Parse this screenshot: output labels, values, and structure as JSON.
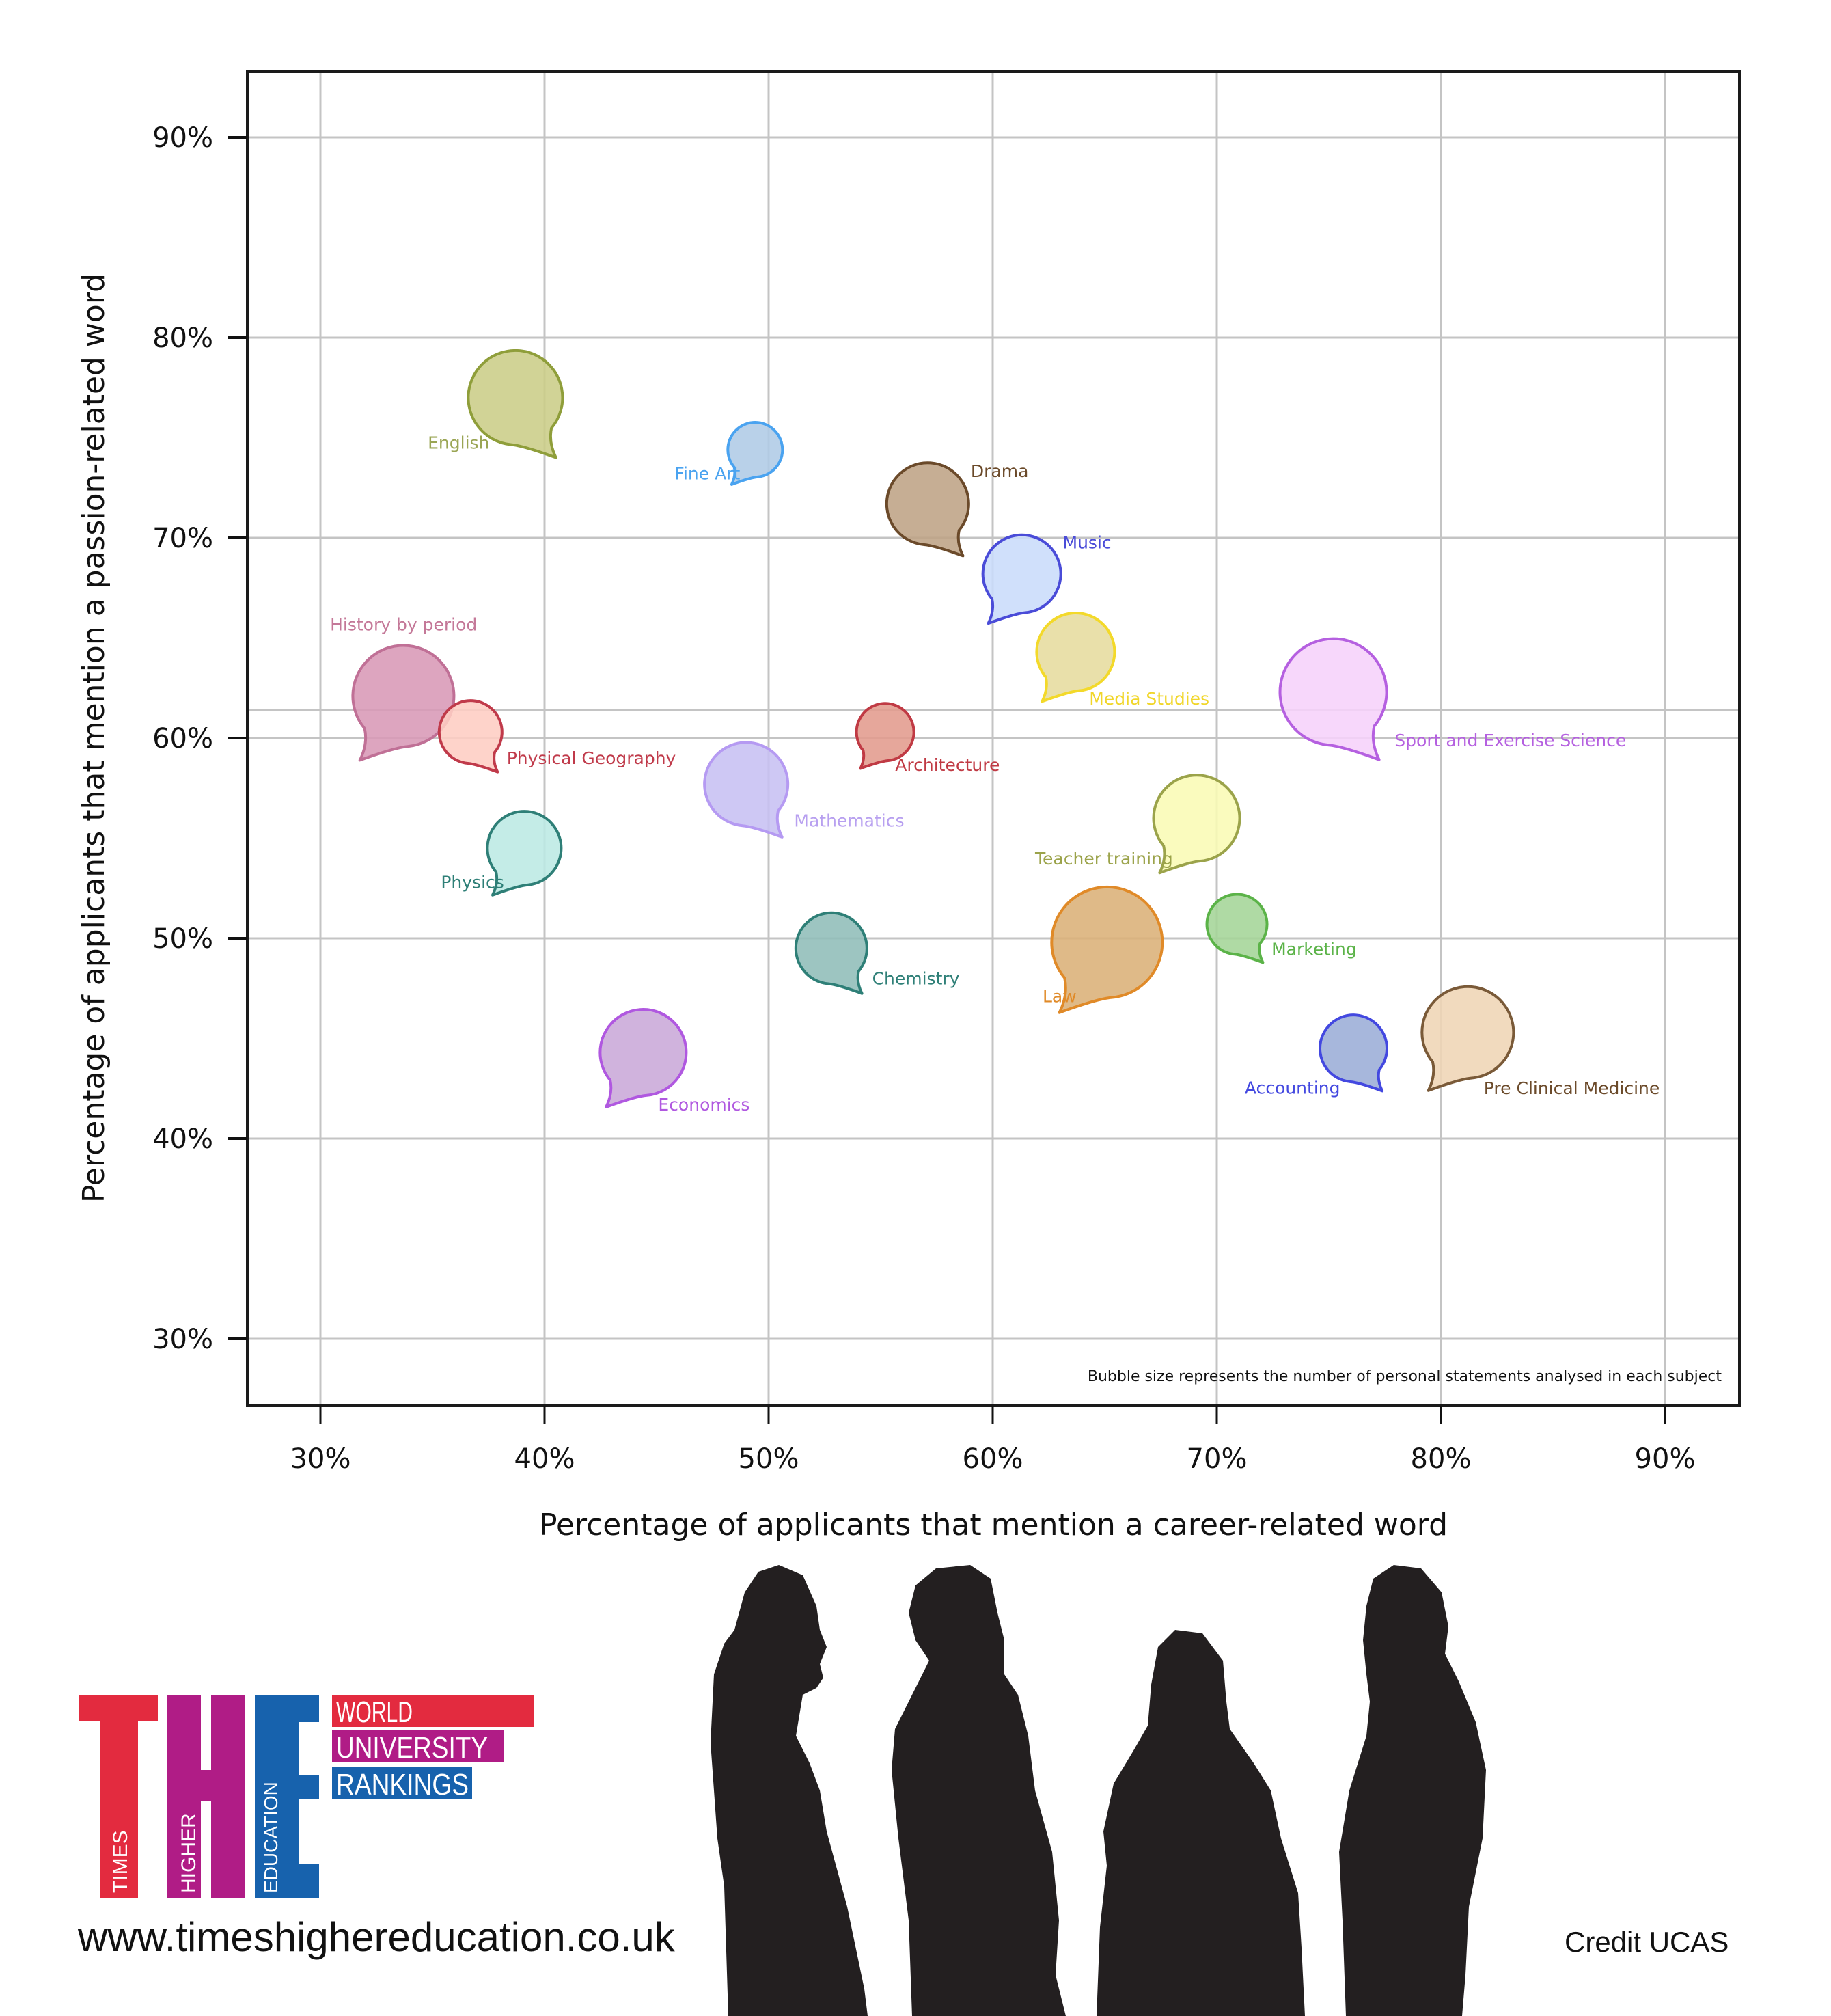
{
  "chart_data": {
    "type": "scatter",
    "subtype": "bubble",
    "xlabel": "Percentage of applicants that mention a career-related word",
    "ylabel": "Percentage of applicants that mention a passion-related word",
    "xlim": [
      27,
      93
    ],
    "ylim": [
      26.5,
      93.3
    ],
    "x_ticks": [
      30,
      40,
      50,
      60,
      70,
      80,
      90
    ],
    "x_tick_labels": [
      "30%",
      "40%",
      "50%",
      "60%",
      "70%",
      "80%",
      "90%"
    ],
    "y_ticks": [
      30,
      40,
      50,
      60,
      70,
      80,
      90
    ],
    "y_tick_labels": [
      "30%",
      "40%",
      "50%",
      "60%",
      "70%",
      "80%",
      "90%"
    ],
    "extra_gridline_y": 61.4,
    "grid": true,
    "note": "Bubble size represents the number of personal statements analysed in each subject",
    "series": [
      {
        "name": "English",
        "x": 38.7,
        "y": 77.0,
        "size": 69,
        "tail": "right",
        "label_pos": "left",
        "fill": "#cbcd87",
        "stroke": "#8f9e3a",
        "text": "#9aa554"
      },
      {
        "name": "Fine Art",
        "x": 49.4,
        "y": 74.4,
        "size": 40,
        "tail": "left",
        "label_pos": "left",
        "fill": "#afcbe6",
        "stroke": "#4aa3f0",
        "text": "#4aa3f0"
      },
      {
        "name": "Drama",
        "x": 57.1,
        "y": 71.7,
        "size": 60,
        "tail": "right",
        "label_pos": "right-top",
        "fill": "#bea385",
        "stroke": "#6b4a2a",
        "text": "#6b4a2a"
      },
      {
        "name": "Music",
        "x": 61.3,
        "y": 68.2,
        "size": 57,
        "tail": "left",
        "label_pos": "right-top",
        "fill": "#cadcfb",
        "stroke": "#4a4cd8",
        "text": "#4a4cd8"
      },
      {
        "name": "Media  Studies",
        "x": 63.7,
        "y": 64.3,
        "size": 57,
        "tail": "left",
        "label_pos": "right-bottom",
        "fill": "#e6dc9e",
        "stroke": "#f3d92a",
        "text": "#f1d62a"
      },
      {
        "name": "Sport and Exercise  Science",
        "x": 75.2,
        "y": 62.3,
        "size": 78,
        "tail": "right",
        "label_pos": "right",
        "fill": "#f6d2fb",
        "stroke": "#b560e0",
        "text": "#b560e0"
      },
      {
        "name": "History  by  period",
        "x": 33.7,
        "y": 62.1,
        "size": 74,
        "tail": "left",
        "label_pos": "top",
        "fill": "#d899b6",
        "stroke": "#c07096",
        "text": "#c47898"
      },
      {
        "name": "Physical  Geography",
        "x": 36.7,
        "y": 60.3,
        "size": 46,
        "tail": "right",
        "label_pos": "right",
        "fill": "#fecdc3",
        "stroke": "#c03a4a",
        "text": "#c03a4a"
      },
      {
        "name": "Architecture",
        "x": 55.2,
        "y": 60.3,
        "size": 42,
        "tail": "left",
        "label_pos": "right-bottom",
        "fill": "#e39b8d",
        "stroke": "#c03a44",
        "text": "#c03a44"
      },
      {
        "name": "Mathematics",
        "x": 49.0,
        "y": 57.7,
        "size": 61,
        "tail": "right",
        "label_pos": "right",
        "fill": "#c7c0f2",
        "stroke": "#b59af2",
        "text": "#b8a0f0"
      },
      {
        "name": "Physics",
        "x": 39.1,
        "y": 54.5,
        "size": 54,
        "tail": "left",
        "label_pos": "left",
        "fill": "#bce9e4",
        "stroke": "#2e7f77",
        "text": "#2e7f77"
      },
      {
        "name": "Teacher  training",
        "x": 69.1,
        "y": 56.0,
        "size": 63,
        "tail": "left",
        "label_pos": "left",
        "fill": "#f9fab5",
        "stroke": "#9ba34a",
        "text": "#9ba34a"
      },
      {
        "name": "Marketing",
        "x": 70.9,
        "y": 50.7,
        "size": 44,
        "tail": "right",
        "label_pos": "right",
        "fill": "#a4d597",
        "stroke": "#5bb348",
        "text": "#5bb348"
      },
      {
        "name": "Chemistry",
        "x": 52.8,
        "y": 49.5,
        "size": 52,
        "tail": "right",
        "label_pos": "right",
        "fill": "#8fbdb8",
        "stroke": "#2e7f77",
        "text": "#2e7f77"
      },
      {
        "name": "Law",
        "x": 65.1,
        "y": 49.8,
        "size": 81,
        "tail": "left",
        "label_pos": "left",
        "fill": "#dbb078",
        "stroke": "#e08a28",
        "text": "#e08a28"
      },
      {
        "name": "Economics",
        "x": 44.4,
        "y": 44.3,
        "size": 63,
        "tail": "left",
        "label_pos": "right-bottom",
        "fill": "#c9a8d8",
        "stroke": "#b058e0",
        "text": "#b058e0"
      },
      {
        "name": "Accounting",
        "x": 76.1,
        "y": 44.5,
        "size": 49,
        "tail": "right",
        "label_pos": "left-bottom",
        "fill": "#9badd7",
        "stroke": "#4348e0",
        "text": "#4348e0"
      },
      {
        "name": "Pre Clinical Medicine",
        "x": 81.2,
        "y": 45.3,
        "size": 67,
        "tail": "left",
        "label_pos": "right-bottom",
        "fill": "#efd5b5",
        "stroke": "#7a5a38",
        "text": "#6b4a2a"
      }
    ]
  },
  "branding": {
    "logo_letters": [
      "T",
      "H",
      "E"
    ],
    "logo_words": [
      "TIMES",
      "HIGHER",
      "EDUCATION"
    ],
    "banner": [
      "WORLD",
      "UNIVERSITY",
      "RANKINGS"
    ],
    "colors": {
      "red": "#e32b3f",
      "purple": "#b01c86",
      "blue": "#1762ad"
    },
    "url": "www.timeshighereducation.co.uk",
    "credit": "Credit UCAS"
  }
}
